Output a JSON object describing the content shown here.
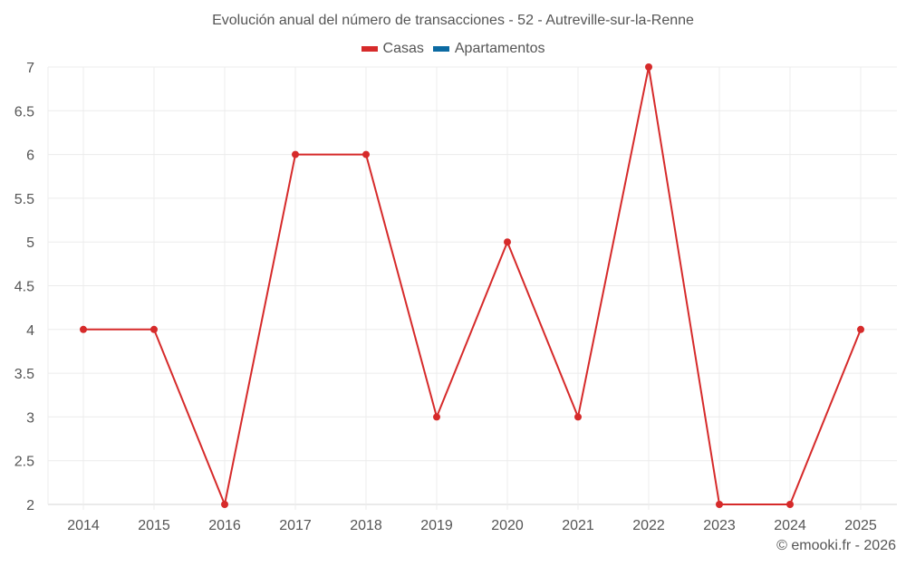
{
  "title": "Evolución anual del número de transacciones - 52 - Autreville-sur-la-Renne",
  "legend": [
    {
      "label": "Casas",
      "color": "#d62a2a"
    },
    {
      "label": "Apartamentos",
      "color": "#0b6aa2"
    }
  ],
  "copyright": "© emooki.fr - 2026",
  "chart_data": {
    "type": "line",
    "title": "Evolución anual del número de transacciones - 52 - Autreville-sur-la-Renne",
    "xlabel": "",
    "ylabel": "",
    "categories": [
      "2014",
      "2015",
      "2016",
      "2017",
      "2018",
      "2019",
      "2020",
      "2021",
      "2022",
      "2023",
      "2024",
      "2025"
    ],
    "series": [
      {
        "name": "Casas",
        "color": "#d62a2a",
        "values": [
          4,
          4,
          2,
          6,
          6,
          3,
          5,
          3,
          7,
          2,
          2,
          4
        ]
      },
      {
        "name": "Apartamentos",
        "color": "#0b6aa2",
        "values": []
      }
    ],
    "ylim": [
      2,
      7
    ],
    "yticks": [
      "2",
      "2.5",
      "3",
      "3.5",
      "4",
      "4.5",
      "5",
      "5.5",
      "6",
      "6.5",
      "7"
    ],
    "grid": true,
    "legend_position": "top"
  }
}
